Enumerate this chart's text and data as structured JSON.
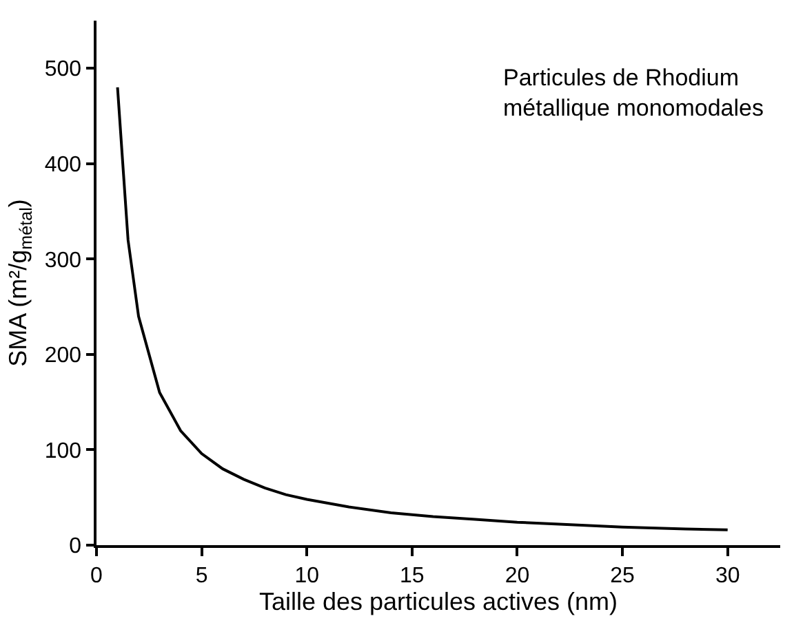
{
  "chart_data": {
    "type": "line",
    "xlabel": "Taille des particules actives (nm)",
    "ylabel": "SMA (m²/g$_{métal}$)",
    "annotations": [
      "Particules de Rhodium\nmétallique monomodales"
    ],
    "x": [
      1,
      1.5,
      2,
      3,
      4,
      5,
      6,
      7,
      8,
      9,
      10,
      12,
      14,
      16,
      18,
      20,
      22,
      25,
      28,
      30
    ],
    "series": [
      {
        "color": "#000000",
        "values": [
          480,
          320,
          240,
          160,
          120,
          96,
          80,
          69,
          60,
          53,
          48,
          40,
          34,
          30,
          27,
          24,
          22,
          19,
          17,
          16
        ]
      }
    ],
    "xlim": [
      0,
      32.5
    ],
    "xticks": [
      0,
      5,
      10,
      15,
      20,
      25,
      30
    ],
    "ylim": [
      0,
      550
    ],
    "yticks": [
      0,
      100,
      200,
      300,
      400,
      500
    ],
    "marker": "none",
    "line_style": "solid"
  }
}
